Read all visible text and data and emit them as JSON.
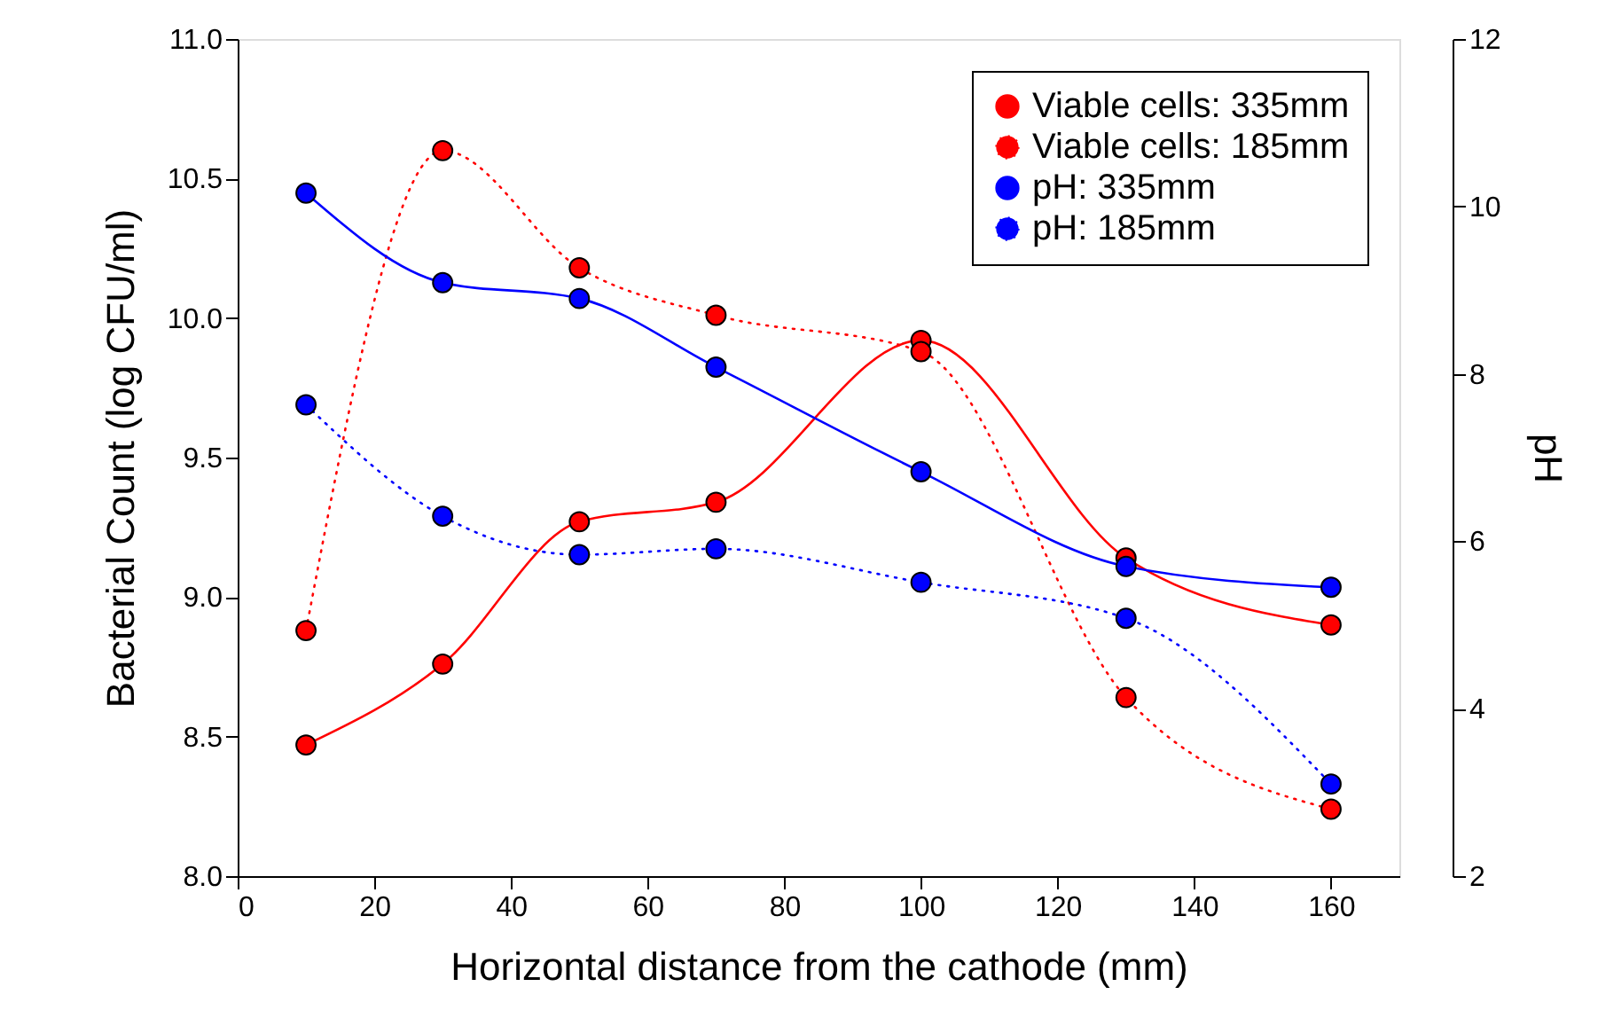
{
  "chart_data": {
    "type": "line",
    "xlabel": "Horizontal distance from the cathode (mm)",
    "ylabel": "Bacterial Count (log CFU/ml)",
    "y2label": "pH",
    "x": [
      10,
      30,
      50,
      70,
      100,
      130,
      160
    ],
    "xlim": [
      0,
      170
    ],
    "xticks": [
      0,
      20,
      40,
      60,
      80,
      100,
      120,
      140,
      160
    ],
    "ylim": [
      8.0,
      11.0
    ],
    "yticks": [
      {
        "value": 8.0,
        "label": "8.0"
      },
      {
        "value": 8.5,
        "label": "8.5"
      },
      {
        "value": 9.0,
        "label": "9.0"
      },
      {
        "value": 9.5,
        "label": "9.5"
      },
      {
        "value": 10.0,
        "label": "10.0"
      },
      {
        "value": 10.5,
        "label": "10.5"
      },
      {
        "value": 11.0,
        "label": "11.0"
      }
    ],
    "y2lim": [
      2,
      12
    ],
    "y2ticks": [
      2,
      4,
      6,
      8,
      10,
      12
    ],
    "marker": "circle",
    "grid": false,
    "legend": "top right",
    "series": [
      {
        "name": "Viable cells: 335mm",
        "color": "#ff0000",
        "line_style": "solid",
        "values": [
          8.47,
          8.76,
          9.27,
          9.34,
          9.92,
          9.14,
          8.9
        ]
      },
      {
        "name": "Viable cells: 185mm",
        "color": "#ff0000",
        "line_style": "dotted",
        "values": [
          8.88,
          10.6,
          10.18,
          10.01,
          9.88,
          8.64,
          8.24
        ]
      },
      {
        "name": "pH: 335mm",
        "color": "#0000ff",
        "line_style": "solid",
        "axis": "y2",
        "values": [
          10.16,
          9.09,
          8.9,
          8.08,
          6.83,
          5.7,
          5.45
        ]
      },
      {
        "name": "pH: 185mm",
        "color": "#0000ff",
        "line_style": "dotted",
        "axis": "y2",
        "values": [
          7.63,
          6.3,
          5.84,
          5.91,
          5.51,
          5.08,
          3.1
        ]
      }
    ]
  }
}
